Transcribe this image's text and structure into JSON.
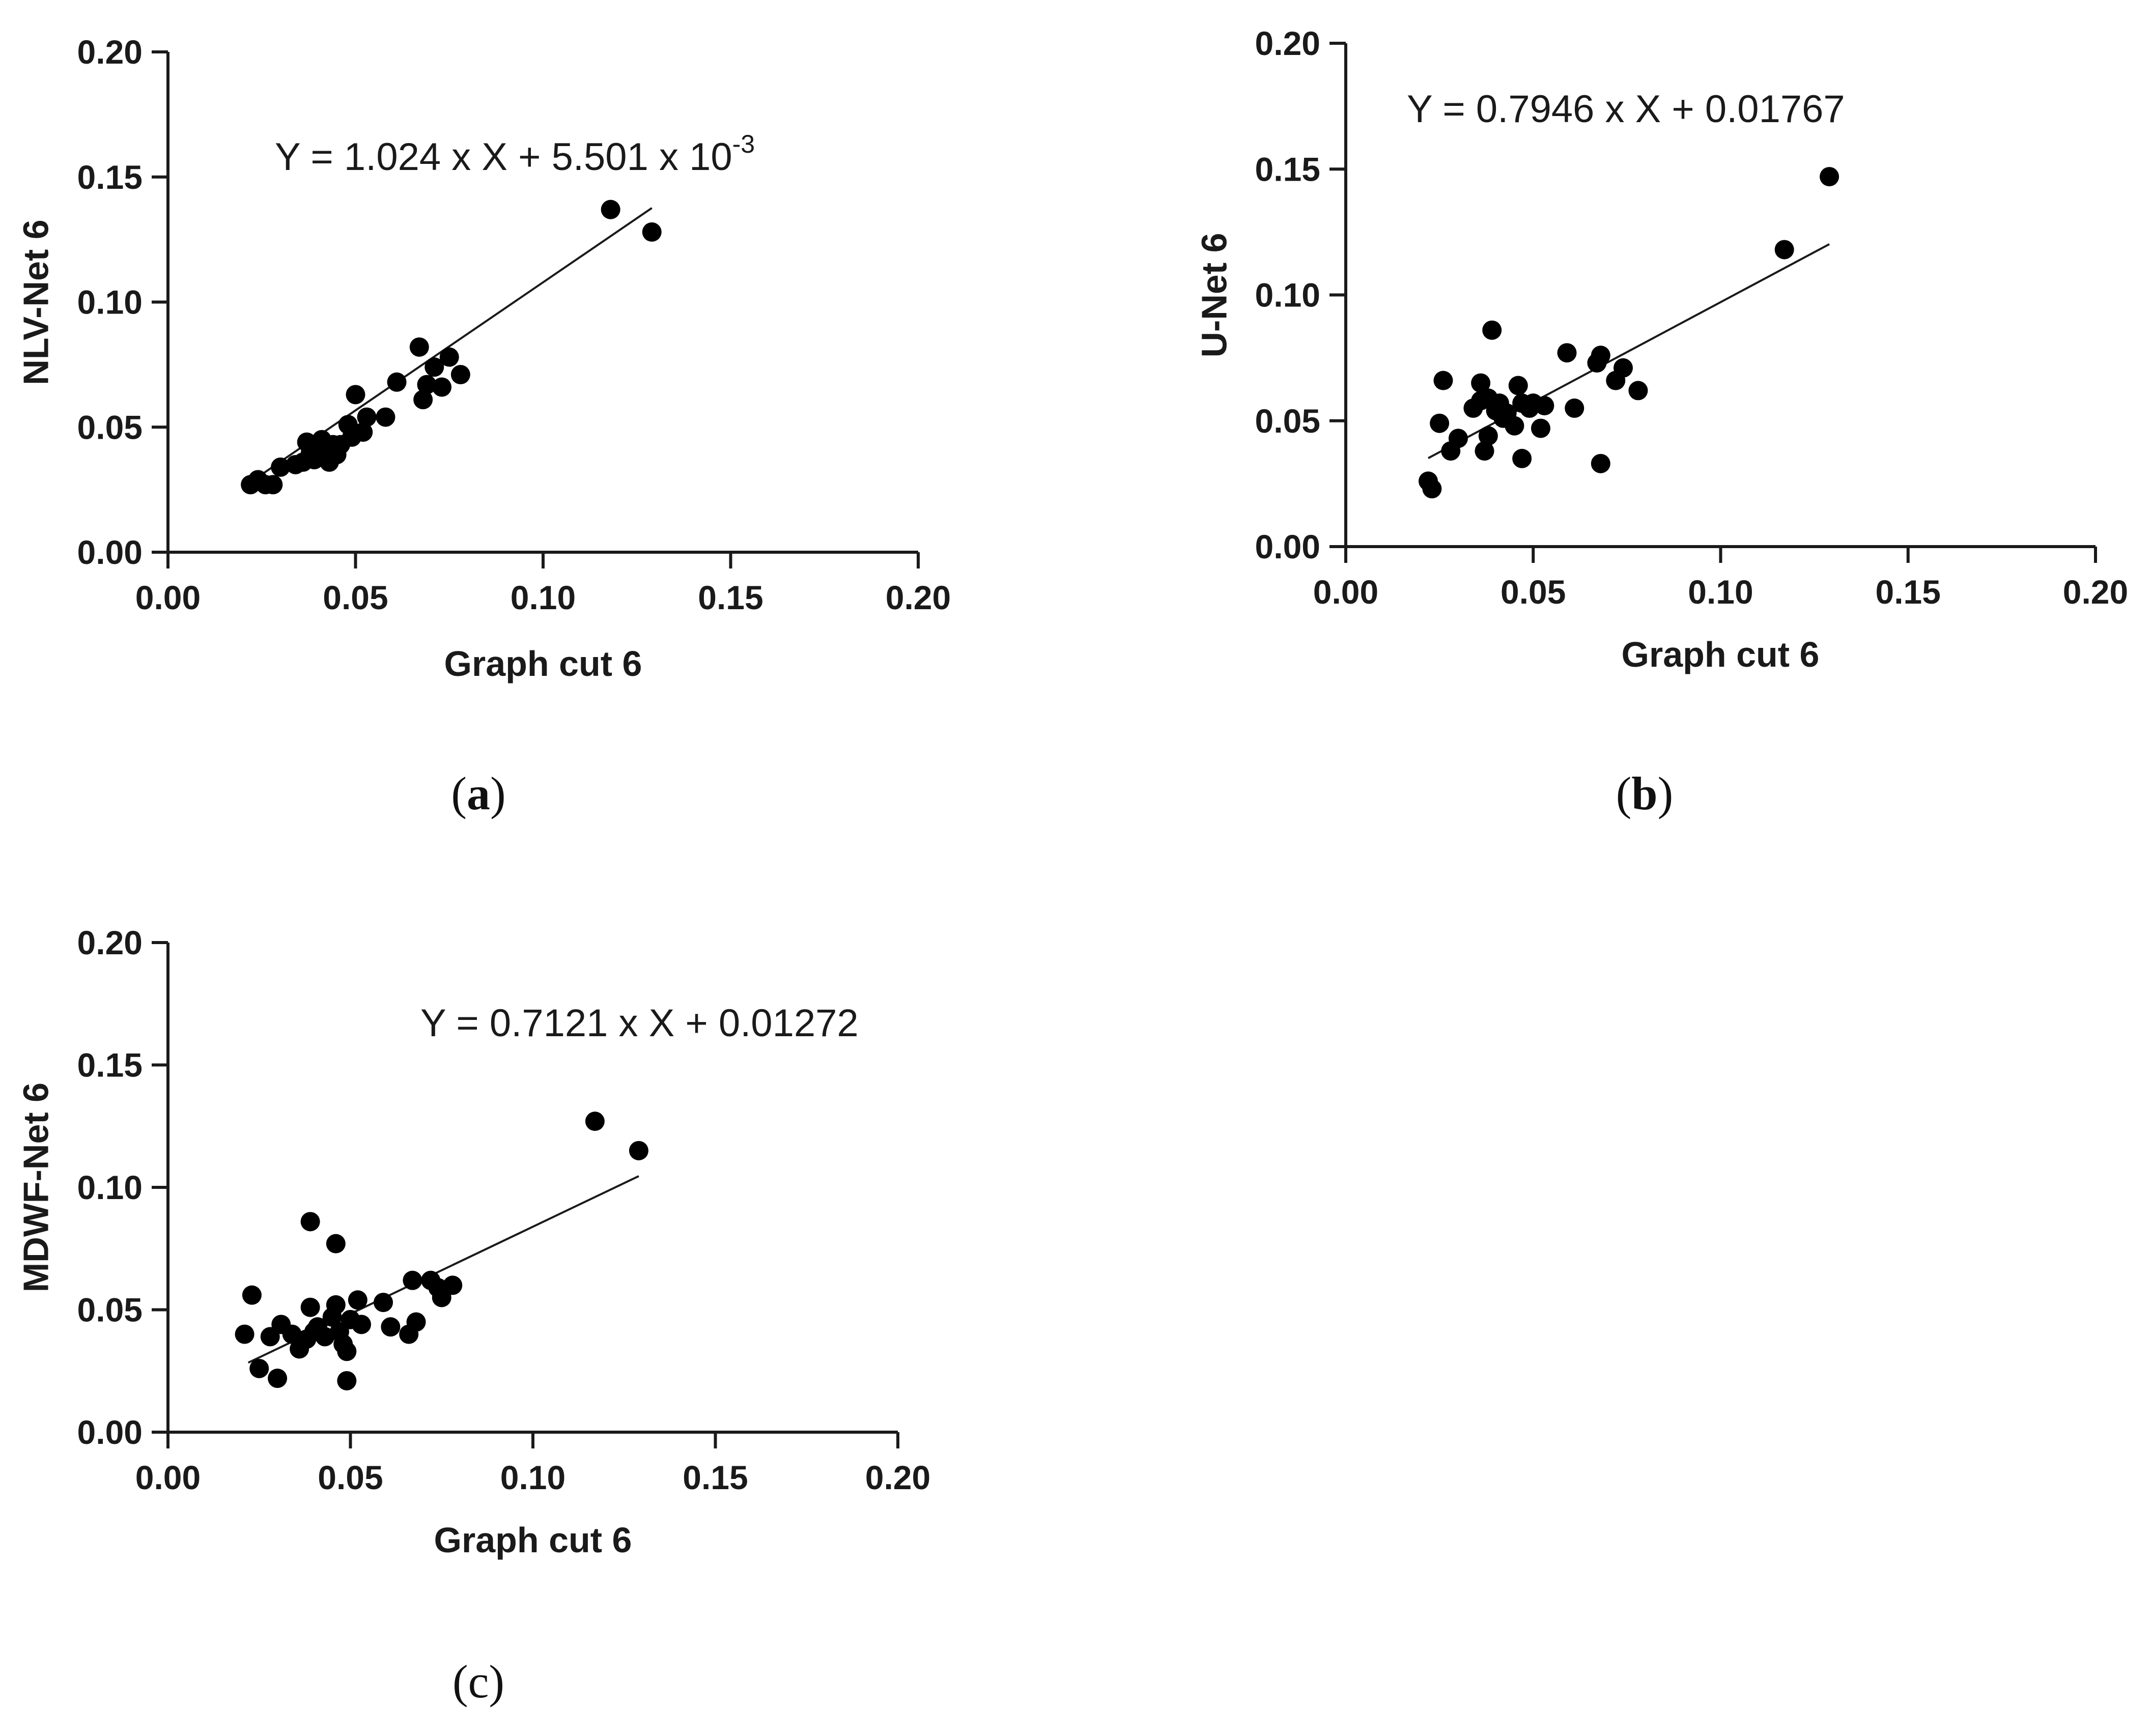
{
  "chart_data": [
    {
      "type": "scatter",
      "panel": "(a)",
      "panel_letter": "a",
      "xlabel": "Graph cut 6",
      "ylabel": "NLV-Net 6",
      "xlim": [
        0,
        0.2
      ],
      "ylim": [
        0,
        0.2
      ],
      "x_ticks": [
        "0.00",
        "0.05",
        "0.10",
        "0.15",
        "0.20"
      ],
      "y_ticks": [
        "0.00",
        "0.05",
        "0.10",
        "0.15",
        "0.20"
      ],
      "fit": {
        "slope": 1.024,
        "intercept": 0.005501,
        "x_range": [
          0.022,
          0.129
        ]
      },
      "equation": {
        "main": "Y = 1.024 x X + 5.501 x 10",
        "sup": "-3"
      },
      "points": [
        {
          "x": 0.022,
          "y": 0.027
        },
        {
          "x": 0.024,
          "y": 0.029
        },
        {
          "x": 0.026,
          "y": 0.027
        },
        {
          "x": 0.028,
          "y": 0.027
        },
        {
          "x": 0.03,
          "y": 0.034
        },
        {
          "x": 0.034,
          "y": 0.035
        },
        {
          "x": 0.036,
          "y": 0.036
        },
        {
          "x": 0.037,
          "y": 0.044
        },
        {
          "x": 0.038,
          "y": 0.04
        },
        {
          "x": 0.039,
          "y": 0.037
        },
        {
          "x": 0.04,
          "y": 0.043
        },
        {
          "x": 0.041,
          "y": 0.045
        },
        {
          "x": 0.042,
          "y": 0.04
        },
        {
          "x": 0.043,
          "y": 0.036
        },
        {
          "x": 0.044,
          "y": 0.043
        },
        {
          "x": 0.045,
          "y": 0.039
        },
        {
          "x": 0.046,
          "y": 0.043
        },
        {
          "x": 0.048,
          "y": 0.051
        },
        {
          "x": 0.049,
          "y": 0.046
        },
        {
          "x": 0.05,
          "y": 0.063
        },
        {
          "x": 0.052,
          "y": 0.048
        },
        {
          "x": 0.053,
          "y": 0.054
        },
        {
          "x": 0.058,
          "y": 0.054
        },
        {
          "x": 0.061,
          "y": 0.068
        },
        {
          "x": 0.067,
          "y": 0.082
        },
        {
          "x": 0.068,
          "y": 0.061
        },
        {
          "x": 0.069,
          "y": 0.067
        },
        {
          "x": 0.071,
          "y": 0.074
        },
        {
          "x": 0.073,
          "y": 0.066
        },
        {
          "x": 0.075,
          "y": 0.078
        },
        {
          "x": 0.078,
          "y": 0.071
        },
        {
          "x": 0.118,
          "y": 0.137
        },
        {
          "x": 0.129,
          "y": 0.128
        }
      ]
    },
    {
      "type": "scatter",
      "panel": "(b)",
      "panel_letter": "b",
      "xlabel": "Graph cut 6",
      "ylabel": "U-Net 6",
      "xlim": [
        0,
        0.2
      ],
      "ylim": [
        0,
        0.2
      ],
      "x_ticks": [
        "0.00",
        "0.05",
        "0.10",
        "0.15",
        "0.20"
      ],
      "y_ticks": [
        "0.00",
        "0.05",
        "0.10",
        "0.15",
        "0.20"
      ],
      "fit": {
        "slope": 0.7946,
        "intercept": 0.01767,
        "x_range": [
          0.022,
          0.129
        ]
      },
      "equation": {
        "main": "Y = 0.7946 x X + 0.01767",
        "sup": ""
      },
      "points": [
        {
          "x": 0.022,
          "y": 0.026
        },
        {
          "x": 0.023,
          "y": 0.023
        },
        {
          "x": 0.025,
          "y": 0.049
        },
        {
          "x": 0.026,
          "y": 0.066
        },
        {
          "x": 0.028,
          "y": 0.038
        },
        {
          "x": 0.03,
          "y": 0.043
        },
        {
          "x": 0.034,
          "y": 0.055
        },
        {
          "x": 0.036,
          "y": 0.058
        },
        {
          "x": 0.036,
          "y": 0.065
        },
        {
          "x": 0.037,
          "y": 0.038
        },
        {
          "x": 0.038,
          "y": 0.044
        },
        {
          "x": 0.038,
          "y": 0.059
        },
        {
          "x": 0.039,
          "y": 0.086
        },
        {
          "x": 0.04,
          "y": 0.054
        },
        {
          "x": 0.041,
          "y": 0.057
        },
        {
          "x": 0.042,
          "y": 0.051
        },
        {
          "x": 0.043,
          "y": 0.053
        },
        {
          "x": 0.045,
          "y": 0.048
        },
        {
          "x": 0.046,
          "y": 0.064
        },
        {
          "x": 0.047,
          "y": 0.057
        },
        {
          "x": 0.047,
          "y": 0.035
        },
        {
          "x": 0.049,
          "y": 0.055
        },
        {
          "x": 0.05,
          "y": 0.057
        },
        {
          "x": 0.052,
          "y": 0.047
        },
        {
          "x": 0.053,
          "y": 0.056
        },
        {
          "x": 0.059,
          "y": 0.077
        },
        {
          "x": 0.061,
          "y": 0.055
        },
        {
          "x": 0.067,
          "y": 0.073
        },
        {
          "x": 0.068,
          "y": 0.033
        },
        {
          "x": 0.068,
          "y": 0.076
        },
        {
          "x": 0.072,
          "y": 0.066
        },
        {
          "x": 0.074,
          "y": 0.071
        },
        {
          "x": 0.078,
          "y": 0.062
        },
        {
          "x": 0.117,
          "y": 0.118
        },
        {
          "x": 0.129,
          "y": 0.147
        }
      ]
    },
    {
      "type": "scatter",
      "panel": "(c)",
      "panel_letter": "c",
      "xlabel": "Graph cut 6",
      "ylabel": "MDWF-Net 6",
      "xlim": [
        0,
        0.2
      ],
      "ylim": [
        0,
        0.2
      ],
      "x_ticks": [
        "0.00",
        "0.05",
        "0.10",
        "0.15",
        "0.20"
      ],
      "y_ticks": [
        "0.00",
        "0.05",
        "0.10",
        "0.15",
        "0.20"
      ],
      "fit": {
        "slope": 0.7121,
        "intercept": 0.01272,
        "x_range": [
          0.022,
          0.129
        ]
      },
      "equation": {
        "main": "Y = 0.7121 x X + 0.01272",
        "sup": ""
      },
      "points": [
        {
          "x": 0.021,
          "y": 0.04
        },
        {
          "x": 0.023,
          "y": 0.056
        },
        {
          "x": 0.025,
          "y": 0.026
        },
        {
          "x": 0.028,
          "y": 0.039
        },
        {
          "x": 0.03,
          "y": 0.022
        },
        {
          "x": 0.031,
          "y": 0.044
        },
        {
          "x": 0.034,
          "y": 0.04
        },
        {
          "x": 0.036,
          "y": 0.034
        },
        {
          "x": 0.038,
          "y": 0.038
        },
        {
          "x": 0.039,
          "y": 0.051
        },
        {
          "x": 0.039,
          "y": 0.086
        },
        {
          "x": 0.04,
          "y": 0.041
        },
        {
          "x": 0.041,
          "y": 0.043
        },
        {
          "x": 0.043,
          "y": 0.039
        },
        {
          "x": 0.045,
          "y": 0.047
        },
        {
          "x": 0.046,
          "y": 0.052
        },
        {
          "x": 0.046,
          "y": 0.077
        },
        {
          "x": 0.047,
          "y": 0.041
        },
        {
          "x": 0.048,
          "y": 0.036
        },
        {
          "x": 0.049,
          "y": 0.033
        },
        {
          "x": 0.049,
          "y": 0.021
        },
        {
          "x": 0.05,
          "y": 0.046
        },
        {
          "x": 0.052,
          "y": 0.054
        },
        {
          "x": 0.053,
          "y": 0.044
        },
        {
          "x": 0.059,
          "y": 0.053
        },
        {
          "x": 0.061,
          "y": 0.043
        },
        {
          "x": 0.066,
          "y": 0.04
        },
        {
          "x": 0.067,
          "y": 0.062
        },
        {
          "x": 0.068,
          "y": 0.045
        },
        {
          "x": 0.072,
          "y": 0.062
        },
        {
          "x": 0.074,
          "y": 0.059
        },
        {
          "x": 0.075,
          "y": 0.055
        },
        {
          "x": 0.078,
          "y": 0.06
        },
        {
          "x": 0.117,
          "y": 0.127
        },
        {
          "x": 0.129,
          "y": 0.115
        }
      ]
    }
  ]
}
